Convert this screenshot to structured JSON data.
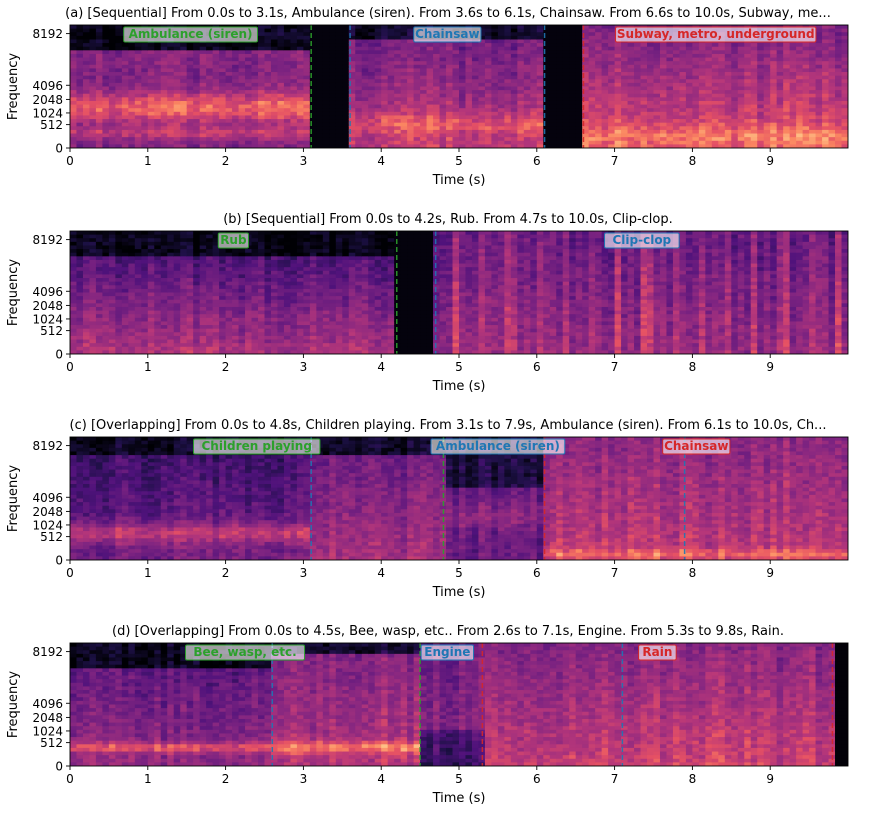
{
  "chart_data": [
    {
      "type": "heatmap",
      "title": "(a) [Sequential] From 0.0s to 3.1s, Ambulance (siren). From 3.6s to 6.1s, Chainsaw. From 6.6s to 10.0s, Subway, me...",
      "xlabel": "Time (s)",
      "ylabel": "Frequency",
      "xlim": [
        0,
        10
      ],
      "xticks": [
        0,
        1,
        2,
        3,
        4,
        5,
        6,
        7,
        8,
        9
      ],
      "yticks": [
        "0",
        "512",
        "1024",
        "2048",
        "4096",
        "8192"
      ],
      "events": [
        {
          "label": "Ambulance (siren)",
          "start": 0.0,
          "end": 3.1,
          "color": "#2ca02c"
        },
        {
          "label": "Chainsaw",
          "start": 3.6,
          "end": 6.1,
          "color": "#1f77b4"
        },
        {
          "label": "Subway, metro, underground",
          "start": 6.6,
          "end": 10.0,
          "color": "#d62728"
        }
      ]
    },
    {
      "type": "heatmap",
      "title": "(b) [Sequential] From 0.0s to 4.2s, Rub. From 4.7s to 10.0s, Clip-clop.",
      "xlabel": "Time (s)",
      "ylabel": "Frequency",
      "xlim": [
        0,
        10
      ],
      "xticks": [
        0,
        1,
        2,
        3,
        4,
        5,
        6,
        7,
        8,
        9
      ],
      "yticks": [
        "0",
        "512",
        "1024",
        "2048",
        "4096",
        "8192"
      ],
      "events": [
        {
          "label": "Rub",
          "start": 0.0,
          "end": 4.2,
          "color": "#2ca02c"
        },
        {
          "label": "Clip-clop",
          "start": 4.7,
          "end": 10.0,
          "color": "#1f77b4"
        }
      ]
    },
    {
      "type": "heatmap",
      "title": "(c) [Overlapping] From 0.0s to 4.8s, Children playing. From 3.1s to 7.9s, Ambulance (siren). From 6.1s to 10.0s, Ch...",
      "xlabel": "Time (s)",
      "ylabel": "Frequency",
      "xlim": [
        0,
        10
      ],
      "xticks": [
        0,
        1,
        2,
        3,
        4,
        5,
        6,
        7,
        8,
        9
      ],
      "yticks": [
        "0",
        "512",
        "1024",
        "2048",
        "4096",
        "8192"
      ],
      "events": [
        {
          "label": "Children playing",
          "start": 0.0,
          "end": 4.8,
          "color": "#2ca02c"
        },
        {
          "label": "Ambulance (siren)",
          "start": 3.1,
          "end": 7.9,
          "color": "#1f77b4"
        },
        {
          "label": "Chainsaw",
          "start": 6.1,
          "end": 10.0,
          "color": "#d62728"
        }
      ]
    },
    {
      "type": "heatmap",
      "title": "(d) [Overlapping] From 0.0s to 4.5s, Bee, wasp, etc.. From 2.6s to 7.1s, Engine. From 5.3s to 9.8s, Rain.",
      "xlabel": "Time (s)",
      "ylabel": "Frequency",
      "xlim": [
        0,
        10
      ],
      "xticks": [
        0,
        1,
        2,
        3,
        4,
        5,
        6,
        7,
        8,
        9
      ],
      "yticks": [
        "0",
        "512",
        "1024",
        "2048",
        "4096",
        "8192"
      ],
      "events": [
        {
          "label": "Bee, wasp, etc.",
          "start": 0.0,
          "end": 4.5,
          "color": "#2ca02c"
        },
        {
          "label": "Engine",
          "start": 2.6,
          "end": 7.1,
          "color": "#1f77b4"
        },
        {
          "label": "Rain",
          "start": 5.3,
          "end": 9.8,
          "color": "#d62728"
        }
      ]
    }
  ]
}
